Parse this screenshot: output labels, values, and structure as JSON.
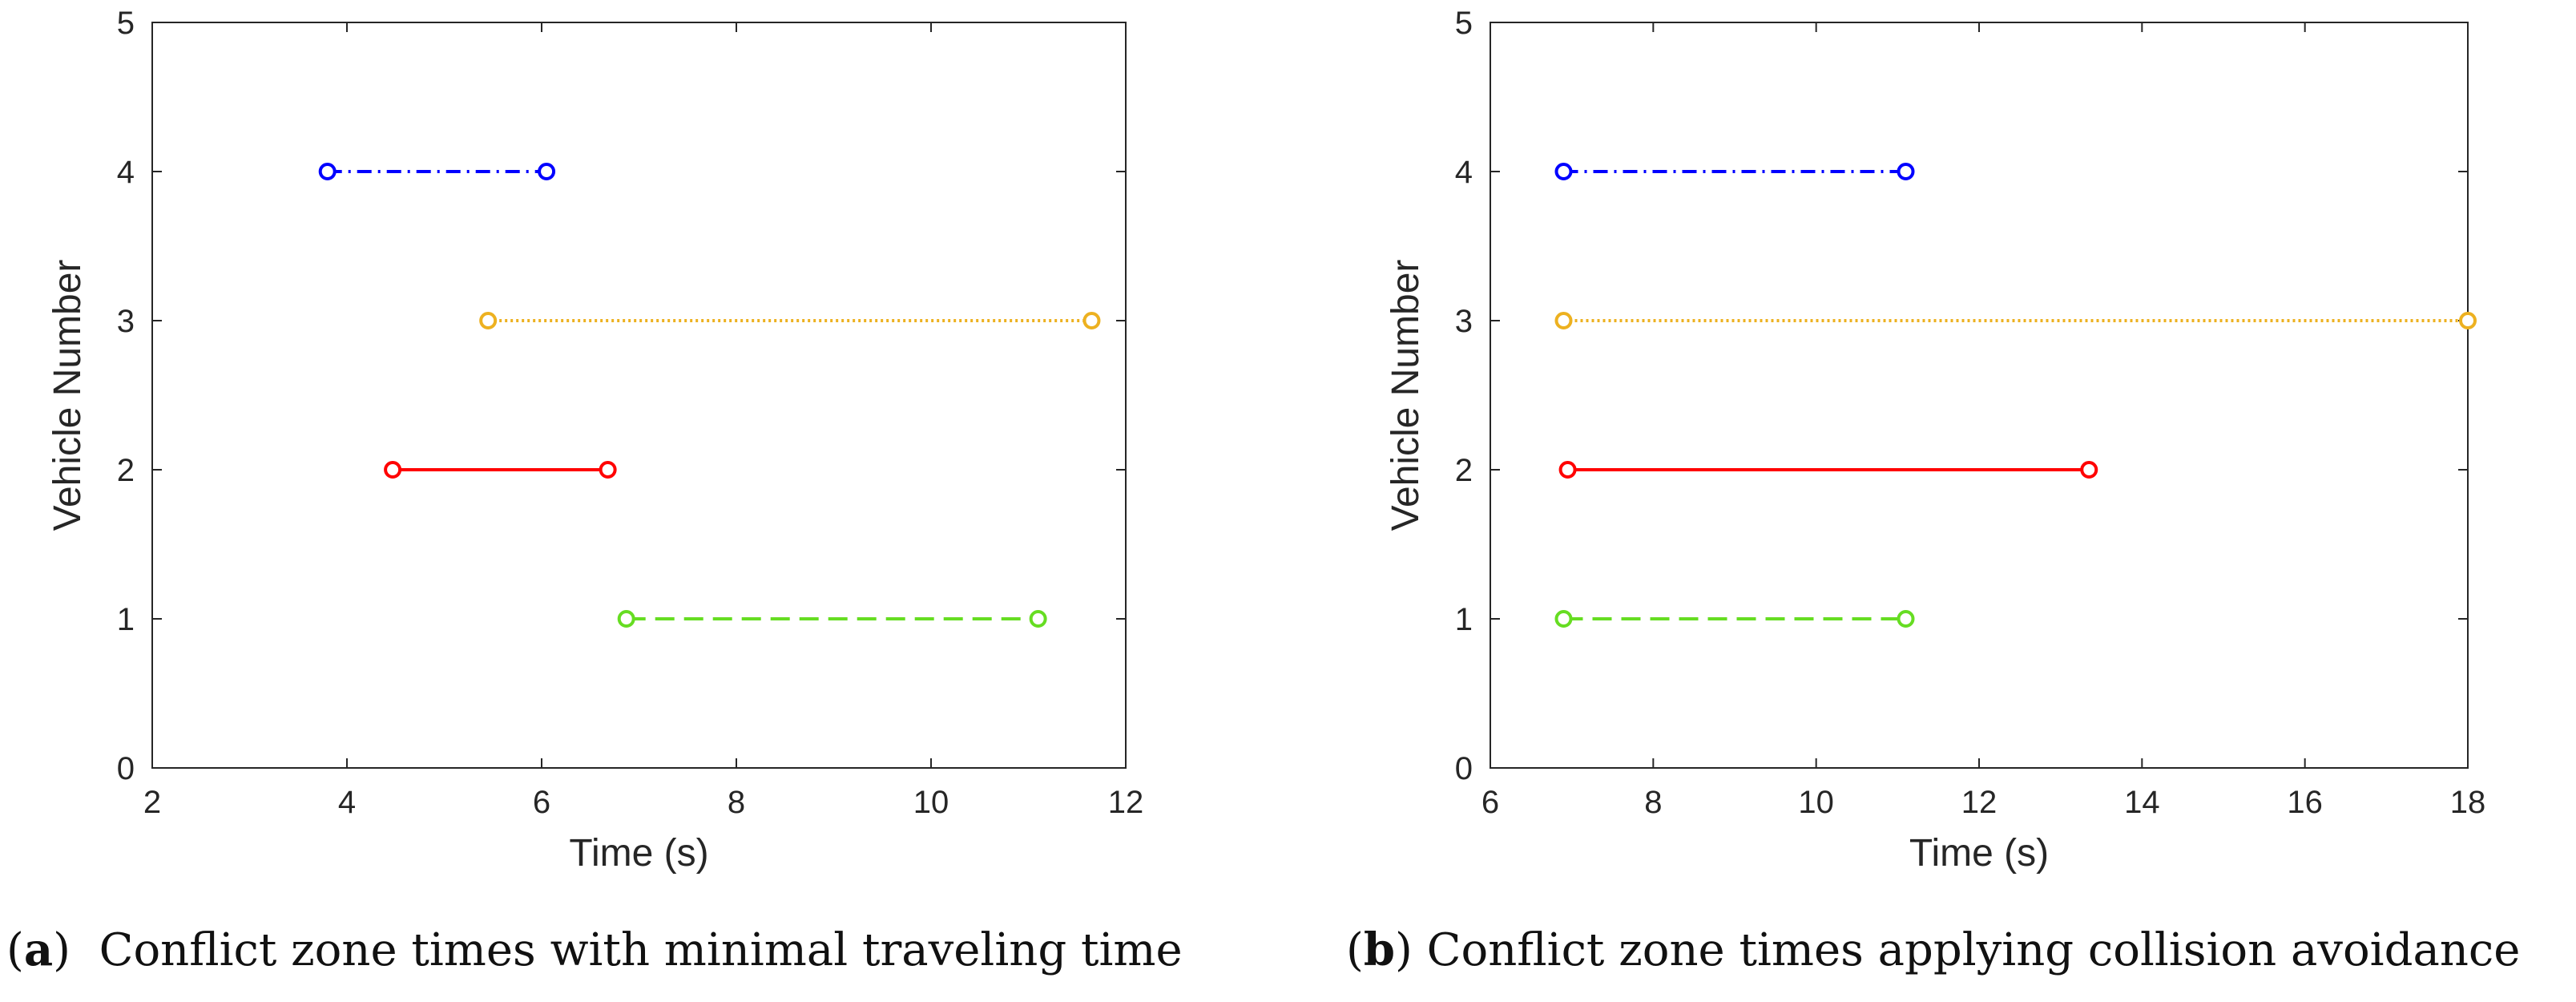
{
  "chart_data": [
    {
      "type": "line",
      "panel": "a",
      "xlabel": "Time (s)",
      "ylabel": "Vehicle Number",
      "xlim": [
        2,
        12
      ],
      "ylim": [
        0,
        5
      ],
      "xticks": [
        2,
        4,
        6,
        8,
        10,
        12
      ],
      "yticks": [
        0,
        1,
        2,
        3,
        4,
        5
      ],
      "series": [
        {
          "name": "Vehicle 4",
          "color": "#0000ff",
          "style": "dashdot",
          "y": 4,
          "start": 3.8,
          "end": 6.05
        },
        {
          "name": "Vehicle 3",
          "color": "#edb120",
          "style": "dotted",
          "y": 3,
          "start": 5.45,
          "end": 11.65
        },
        {
          "name": "Vehicle 2",
          "color": "#ff0000",
          "style": "solid",
          "y": 2,
          "start": 4.47,
          "end": 6.68
        },
        {
          "name": "Vehicle 1",
          "color": "#66dd22",
          "style": "dashed",
          "y": 1,
          "start": 6.87,
          "end": 11.1
        }
      ],
      "caption_label": "a",
      "caption_text": "Conflict zone times with minimal traveling time"
    },
    {
      "type": "line",
      "panel": "b",
      "xlabel": "Time (s)",
      "ylabel": "Vehicle Number",
      "xlim": [
        6,
        18
      ],
      "ylim": [
        0,
        5
      ],
      "xticks": [
        6,
        8,
        10,
        12,
        14,
        16,
        18
      ],
      "yticks": [
        0,
        1,
        2,
        3,
        4,
        5
      ],
      "series": [
        {
          "name": "Vehicle 4",
          "color": "#0000ff",
          "style": "dashdot",
          "y": 4,
          "start": 6.9,
          "end": 11.1
        },
        {
          "name": "Vehicle 3",
          "color": "#edb120",
          "style": "dotted",
          "y": 3,
          "start": 6.9,
          "end": 18.0
        },
        {
          "name": "Vehicle 2",
          "color": "#ff0000",
          "style": "solid",
          "y": 2,
          "start": 6.95,
          "end": 13.35
        },
        {
          "name": "Vehicle 1",
          "color": "#66dd22",
          "style": "dashed",
          "y": 1,
          "start": 6.9,
          "end": 11.1
        }
      ],
      "caption_label": "b",
      "caption_text": "Conflict zone times applying collision avoidance"
    }
  ]
}
